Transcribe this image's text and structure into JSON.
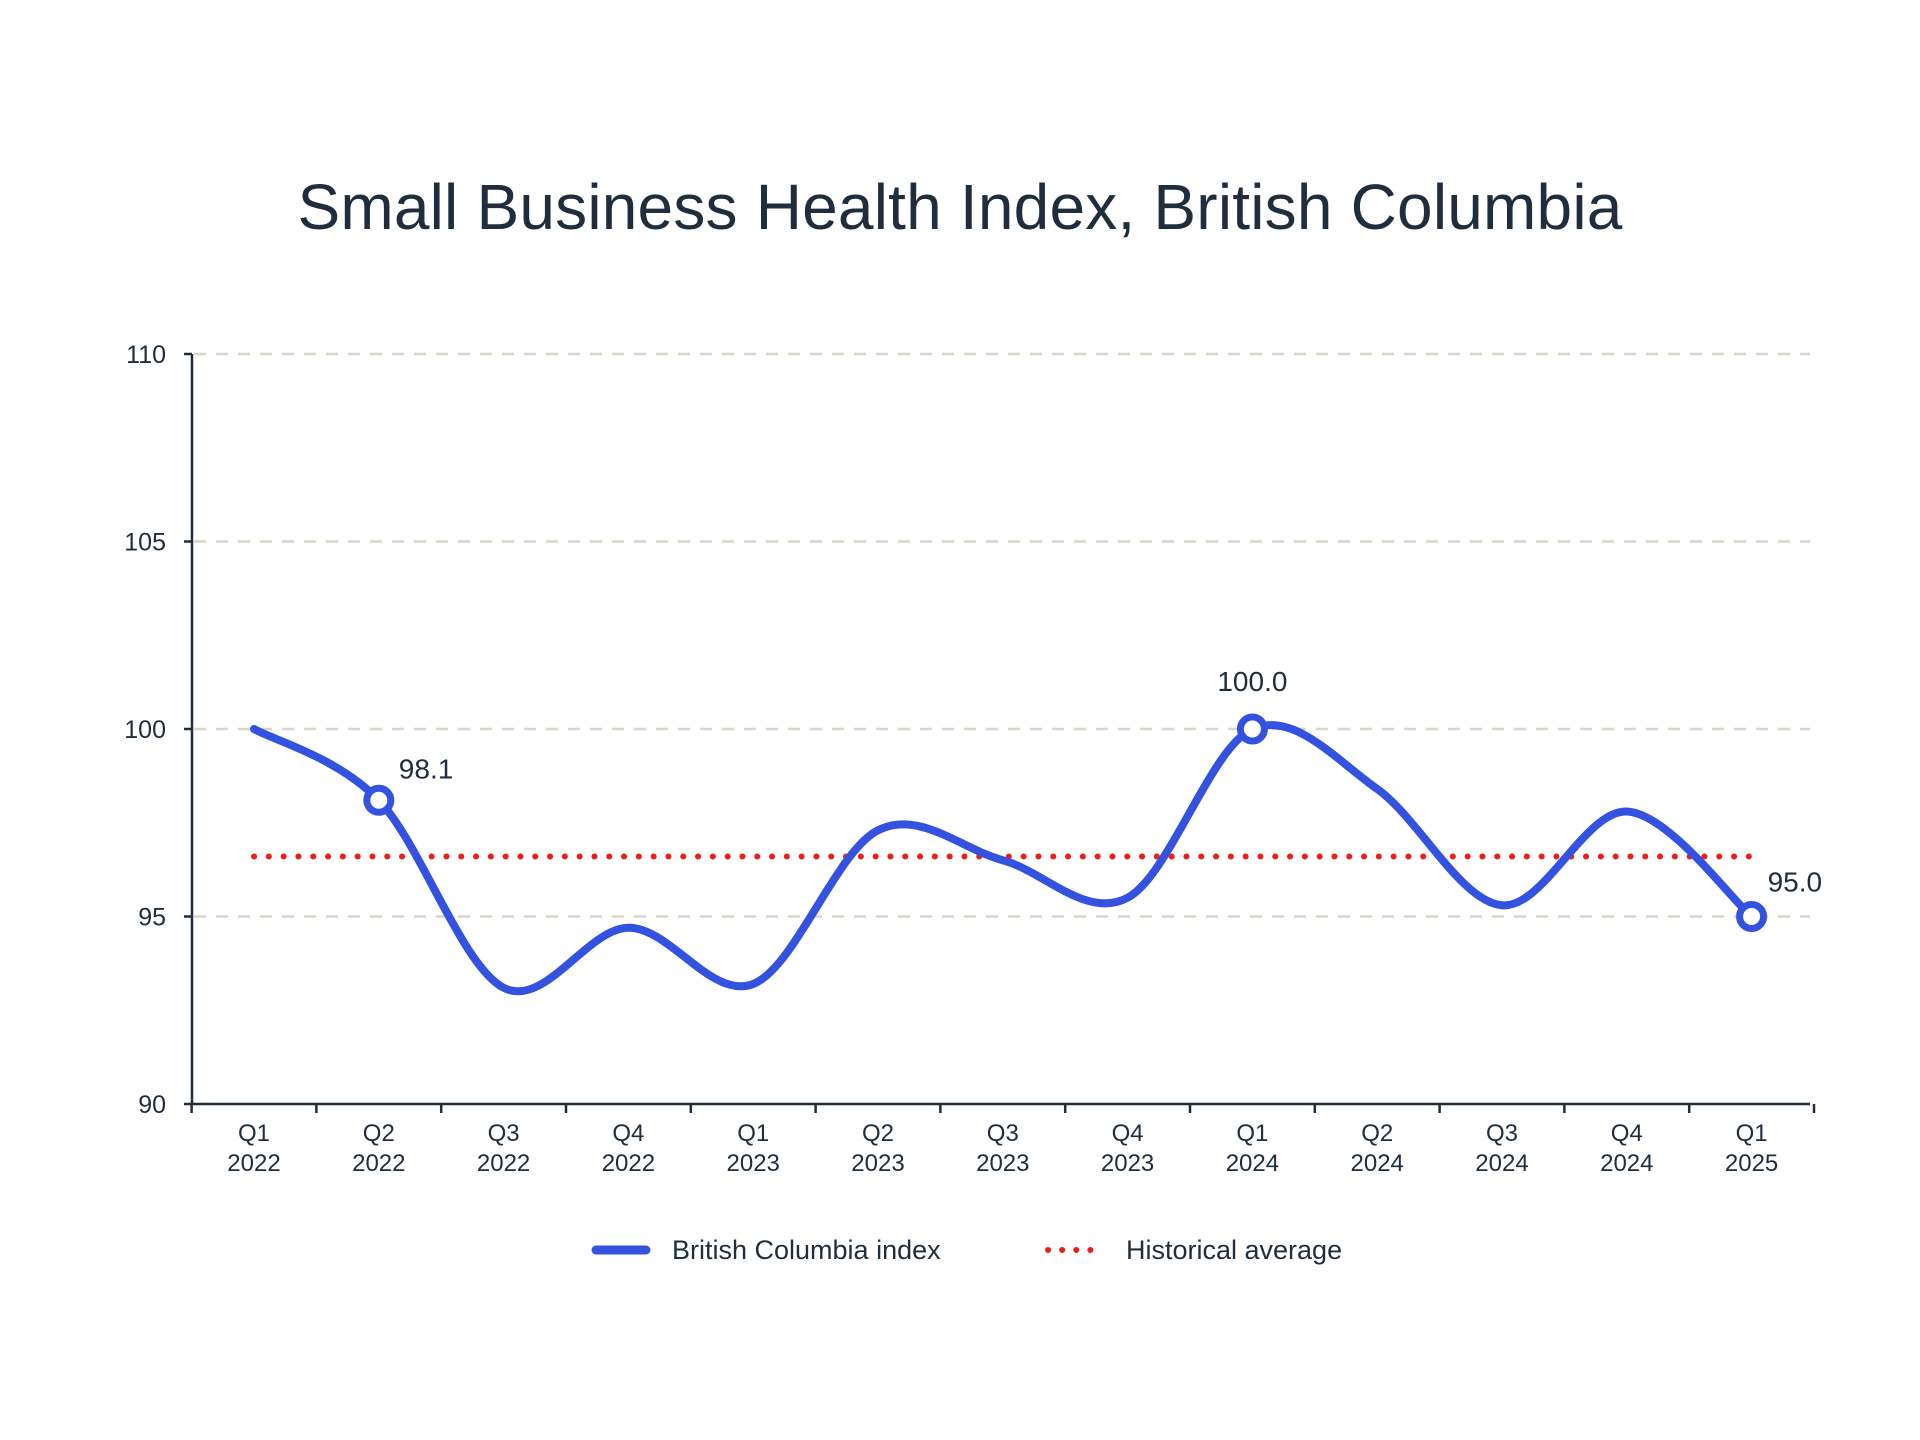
{
  "chart_data": {
    "type": "line",
    "title": "Small Business Health Index, British Columbia",
    "xlabel": "",
    "ylabel": "",
    "categories": [
      [
        "Q1",
        "2022"
      ],
      [
        "Q2",
        "2022"
      ],
      [
        "Q3",
        "2022"
      ],
      [
        "Q4",
        "2022"
      ],
      [
        "Q1",
        "2023"
      ],
      [
        "Q2",
        "2023"
      ],
      [
        "Q3",
        "2023"
      ],
      [
        "Q4",
        "2023"
      ],
      [
        "Q1",
        "2024"
      ],
      [
        "Q2",
        "2024"
      ],
      [
        "Q3",
        "2024"
      ],
      [
        "Q4",
        "2024"
      ],
      [
        "Q1",
        "2025"
      ]
    ],
    "ylim": [
      90,
      110
    ],
    "yticks": [
      "90",
      "95",
      "100",
      "105",
      "110"
    ],
    "grid": "horizontal dashed",
    "legend_position": "bottom-center",
    "series": [
      {
        "name": "British Columbia index",
        "values": [
          100.0,
          98.1,
          93.1,
          94.7,
          93.2,
          97.3,
          96.5,
          95.5,
          100.0,
          98.4,
          95.3,
          97.8,
          95.0
        ],
        "color": "#3352e0",
        "style": "solid-smooth",
        "annotations": [
          {
            "index": 1,
            "label": "98.1"
          },
          {
            "index": 8,
            "label": "100.0"
          },
          {
            "index": 12,
            "label": "95.0"
          }
        ]
      },
      {
        "name": "Historical average",
        "value": 96.6,
        "color": "#e8201a",
        "style": "dotted"
      }
    ],
    "colors": {
      "axis": "#1f2d3d",
      "grid": "#d9d6c8",
      "text": "#1f2d3d"
    }
  }
}
